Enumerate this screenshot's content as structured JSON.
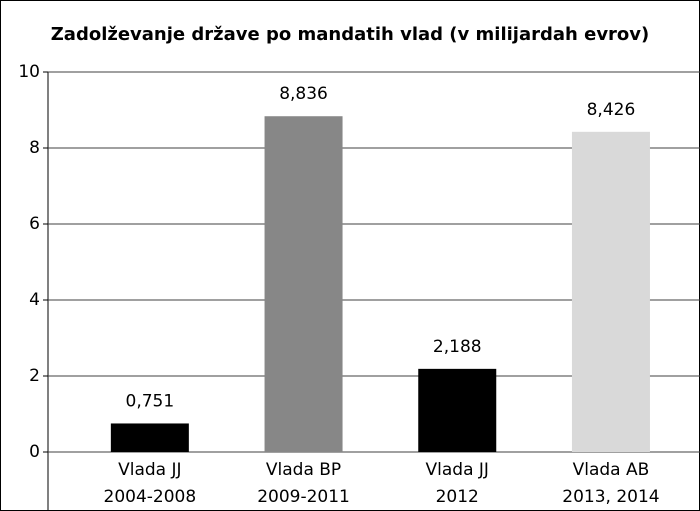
{
  "chart_data": {
    "type": "bar",
    "title": "Zadolževanje države po mandatih vlad (v milijardah evrov)",
    "categories": [
      [
        "Vlada JJ",
        "2004-2008"
      ],
      [
        "Vlada BP",
        "2009-2011"
      ],
      [
        "Vlada JJ",
        "2012"
      ],
      [
        "Vlada AB",
        "2013, 2014"
      ]
    ],
    "values": [
      0.751,
      8.836,
      2.188,
      8.426
    ],
    "value_labels": [
      "0,751",
      "8,836",
      "2,188",
      "8,426"
    ],
    "colors": [
      "#000000",
      "#878787",
      "#000000",
      "#d9d9d9"
    ],
    "ylim": [
      0,
      10
    ],
    "yticks": [
      0,
      2,
      4,
      6,
      8,
      10
    ],
    "grid": true
  }
}
